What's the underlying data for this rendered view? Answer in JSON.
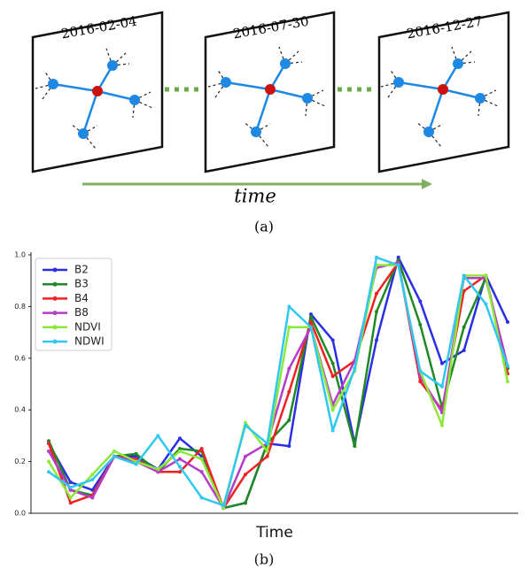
{
  "diagram": {
    "frames": [
      {
        "date": "2016-02-04"
      },
      {
        "date": "2016-07-30"
      },
      {
        "date": "2016-12-27"
      }
    ],
    "axis_label": "time",
    "caption": "(a)"
  },
  "chart_data": {
    "type": "line",
    "x_label": "Time",
    "caption": "(b)",
    "categories": [
      null,
      null,
      null,
      null,
      null,
      null,
      null,
      null,
      null,
      null,
      null,
      null,
      null,
      null,
      null,
      null,
      null,
      null,
      null,
      null,
      null,
      null
    ],
    "ylim": [
      0,
      1
    ],
    "yticks": [
      {
        "value": 0,
        "label": "0.0"
      },
      0.2,
      0.4,
      0.6,
      0.8,
      {
        "value": 1,
        "label": "1.0"
      }
    ],
    "legend": "upper left",
    "series": [
      {
        "name": "B2",
        "color": "#2a2ee6",
        "values": [
          0.27,
          0.12,
          0.09,
          0.22,
          0.22,
          0.17,
          0.29,
          0.22,
          0.02,
          0.04,
          0.27,
          0.26,
          0.77,
          0.67,
          0.27,
          0.67,
          0.99,
          0.82,
          0.58,
          0.63,
          0.92,
          0.74
        ]
      },
      {
        "name": "B3",
        "color": "#1f8a24",
        "values": [
          0.28,
          0.09,
          0.07,
          0.22,
          0.23,
          0.16,
          0.25,
          0.24,
          0.02,
          0.04,
          0.27,
          0.36,
          0.76,
          0.58,
          0.26,
          0.78,
          0.98,
          0.73,
          0.41,
          0.72,
          0.91,
          0.56
        ]
      },
      {
        "name": "B4",
        "color": "#ee2222",
        "values": [
          0.27,
          0.04,
          0.07,
          0.22,
          0.21,
          0.16,
          0.16,
          0.25,
          0.02,
          0.15,
          0.22,
          0.47,
          0.74,
          0.53,
          0.59,
          0.85,
          0.97,
          0.51,
          0.4,
          0.86,
          0.92,
          0.54
        ]
      },
      {
        "name": "B8",
        "color": "#b43cc8",
        "values": [
          0.24,
          0.09,
          0.06,
          0.22,
          0.2,
          0.16,
          0.21,
          0.16,
          0.02,
          0.22,
          0.27,
          0.56,
          0.72,
          0.42,
          0.59,
          0.95,
          0.97,
          0.53,
          0.39,
          0.91,
          0.91,
          0.57
        ]
      },
      {
        "name": "NDVI",
        "color": "#8ee83a",
        "values": [
          0.2,
          0.06,
          0.15,
          0.24,
          0.2,
          0.17,
          0.24,
          0.21,
          0.02,
          0.35,
          0.24,
          0.72,
          0.72,
          0.4,
          0.55,
          0.96,
          0.96,
          0.55,
          0.34,
          0.92,
          0.92,
          0.51
        ]
      },
      {
        "name": "NDWI",
        "color": "#30c8f0",
        "values": [
          0.16,
          0.1,
          0.13,
          0.22,
          0.19,
          0.3,
          0.18,
          0.06,
          0.03,
          0.34,
          0.27,
          0.8,
          0.72,
          0.32,
          0.56,
          0.99,
          0.96,
          0.55,
          0.49,
          0.92,
          0.81,
          0.57
        ]
      }
    ]
  }
}
